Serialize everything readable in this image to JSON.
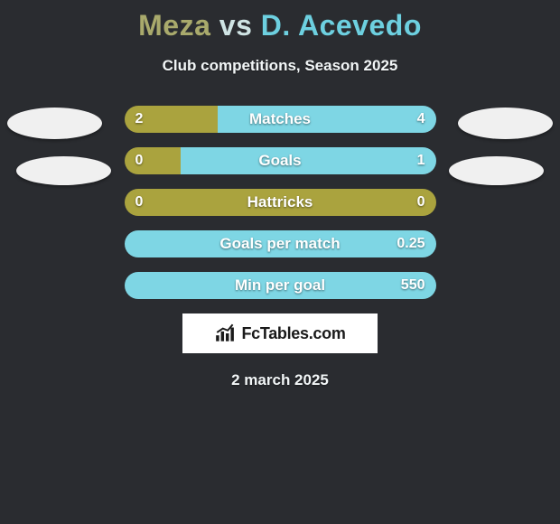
{
  "background_color": "#2a2c30",
  "title": {
    "player1": "Meza",
    "vs": "vs",
    "player2": "D. Acevedo",
    "p1_color": "#a9aa6c",
    "vs_color": "#cfe4e4",
    "p2_color": "#6dd0e0"
  },
  "subtitle": "Club competitions, Season 2025",
  "bar_colors": {
    "left": "#aaa33e",
    "right": "#7ed6e4"
  },
  "rows": [
    {
      "label": "Matches",
      "left": "2",
      "right": "4",
      "left_pct": 30,
      "right_pct": 70
    },
    {
      "label": "Goals",
      "left": "0",
      "right": "1",
      "left_pct": 18,
      "right_pct": 82
    },
    {
      "label": "Hattricks",
      "left": "0",
      "right": "0",
      "left_pct": 100,
      "right_pct": 0
    },
    {
      "label": "Goals per match",
      "left": "",
      "right": "0.25",
      "left_pct": 0,
      "right_pct": 100
    },
    {
      "label": "Min per goal",
      "left": "",
      "right": "550",
      "left_pct": 0,
      "right_pct": 100
    }
  ],
  "watermark": "FcTables.com",
  "footer_date": "2 march 2025",
  "portraits": {
    "bg": "#f0f0f0"
  }
}
